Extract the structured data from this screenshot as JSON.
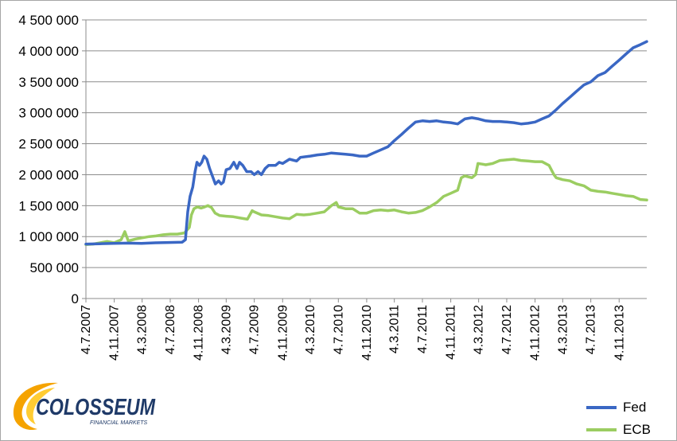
{
  "brand": {
    "name": "COLOSSEUM",
    "tagline": "FINANCIAL MARKETS",
    "colors": {
      "orange": "#f5a300",
      "navy": "#1f3a68"
    }
  },
  "chart_data": {
    "type": "line",
    "title": "",
    "xlabel": "",
    "ylabel": "",
    "ylim": [
      0,
      4500000
    ],
    "y_ticks": [
      0,
      500000,
      1000000,
      1500000,
      2000000,
      2500000,
      3000000,
      3500000,
      4000000,
      4500000
    ],
    "y_tick_labels": [
      "0",
      "500 000",
      "1 000 000",
      "1 500 000",
      "2 000 000",
      "2 500 000",
      "3 000 000",
      "3 500 000",
      "4 000 000",
      "4 500 000"
    ],
    "xlim": [
      "2007-07-04",
      "2014-03-04"
    ],
    "x_tick_labels": [
      "4.7.2007",
      "4.11.2007",
      "4.3.2008",
      "4.7.2008",
      "4.11.2008",
      "4.3.2009",
      "4.7.2009",
      "4.11.2009",
      "4.3.2010",
      "4.7.2010",
      "4.11.2010",
      "4.3.2011",
      "4.7.2011",
      "4.11.2011",
      "4.3.2012",
      "4.7.2012",
      "4.11.2012",
      "4.3.2013",
      "4.7.2013",
      "4.11.2013"
    ],
    "x_tick_dates": [
      "2007-07-04",
      "2007-11-04",
      "2008-03-04",
      "2008-07-04",
      "2008-11-04",
      "2009-03-04",
      "2009-07-04",
      "2009-11-04",
      "2010-03-04",
      "2010-07-04",
      "2010-11-04",
      "2011-03-04",
      "2011-07-04",
      "2011-11-04",
      "2012-03-04",
      "2012-07-04",
      "2012-11-04",
      "2013-03-04",
      "2013-07-04",
      "2013-11-04"
    ],
    "grid": {
      "horizontal": true,
      "vertical": false
    },
    "legend": "bottom-right",
    "series": [
      {
        "name": "Fed",
        "color": "#3a67c4",
        "points": [
          [
            "2007-07-04",
            880000
          ],
          [
            "2007-09-01",
            885000
          ],
          [
            "2007-11-01",
            890000
          ],
          [
            "2008-01-01",
            895000
          ],
          [
            "2008-03-01",
            890000
          ],
          [
            "2008-05-01",
            900000
          ],
          [
            "2008-07-01",
            905000
          ],
          [
            "2008-08-25",
            910000
          ],
          [
            "2008-09-08",
            950000
          ],
          [
            "2008-09-18",
            1400000
          ],
          [
            "2008-09-28",
            1650000
          ],
          [
            "2008-10-10",
            1800000
          ],
          [
            "2008-10-20",
            2050000
          ],
          [
            "2008-10-28",
            2200000
          ],
          [
            "2008-11-08",
            2150000
          ],
          [
            "2008-11-18",
            2200000
          ],
          [
            "2008-11-28",
            2300000
          ],
          [
            "2008-12-10",
            2250000
          ],
          [
            "2008-12-22",
            2100000
          ],
          [
            "2009-01-06",
            1950000
          ],
          [
            "2009-01-16",
            1850000
          ],
          [
            "2009-01-30",
            1900000
          ],
          [
            "2009-02-10",
            1850000
          ],
          [
            "2009-02-20",
            1880000
          ],
          [
            "2009-03-04",
            2080000
          ],
          [
            "2009-03-20",
            2100000
          ],
          [
            "2009-04-06",
            2200000
          ],
          [
            "2009-04-20",
            2100000
          ],
          [
            "2009-05-01",
            2200000
          ],
          [
            "2009-05-15",
            2150000
          ],
          [
            "2009-06-01",
            2050000
          ],
          [
            "2009-06-20",
            2050000
          ],
          [
            "2009-07-04",
            2000000
          ],
          [
            "2009-07-20",
            2050000
          ],
          [
            "2009-08-04",
            2000000
          ],
          [
            "2009-08-20",
            2100000
          ],
          [
            "2009-09-04",
            2150000
          ],
          [
            "2009-10-04",
            2150000
          ],
          [
            "2009-10-20",
            2200000
          ],
          [
            "2009-11-04",
            2180000
          ],
          [
            "2009-12-04",
            2250000
          ],
          [
            "2010-01-04",
            2220000
          ],
          [
            "2010-01-20",
            2280000
          ],
          [
            "2010-03-04",
            2300000
          ],
          [
            "2010-04-04",
            2320000
          ],
          [
            "2010-05-04",
            2330000
          ],
          [
            "2010-06-04",
            2350000
          ],
          [
            "2010-07-04",
            2340000
          ],
          [
            "2010-08-04",
            2330000
          ],
          [
            "2010-09-04",
            2320000
          ],
          [
            "2010-10-04",
            2300000
          ],
          [
            "2010-11-04",
            2300000
          ],
          [
            "2010-12-04",
            2350000
          ],
          [
            "2011-01-04",
            2400000
          ],
          [
            "2011-02-04",
            2450000
          ],
          [
            "2011-03-04",
            2550000
          ],
          [
            "2011-04-04",
            2650000
          ],
          [
            "2011-05-04",
            2750000
          ],
          [
            "2011-06-04",
            2850000
          ],
          [
            "2011-07-04",
            2870000
          ],
          [
            "2011-08-04",
            2860000
          ],
          [
            "2011-09-04",
            2870000
          ],
          [
            "2011-10-04",
            2850000
          ],
          [
            "2011-11-04",
            2840000
          ],
          [
            "2011-12-04",
            2820000
          ],
          [
            "2012-01-04",
            2900000
          ],
          [
            "2012-02-04",
            2920000
          ],
          [
            "2012-03-04",
            2900000
          ],
          [
            "2012-04-04",
            2870000
          ],
          [
            "2012-05-04",
            2860000
          ],
          [
            "2012-06-04",
            2860000
          ],
          [
            "2012-07-04",
            2850000
          ],
          [
            "2012-08-04",
            2840000
          ],
          [
            "2012-09-04",
            2820000
          ],
          [
            "2012-10-04",
            2830000
          ],
          [
            "2012-11-04",
            2850000
          ],
          [
            "2012-12-04",
            2900000
          ],
          [
            "2013-01-04",
            2950000
          ],
          [
            "2013-02-04",
            3050000
          ],
          [
            "2013-03-04",
            3150000
          ],
          [
            "2013-04-04",
            3250000
          ],
          [
            "2013-05-04",
            3350000
          ],
          [
            "2013-06-04",
            3450000
          ],
          [
            "2013-07-04",
            3500000
          ],
          [
            "2013-08-04",
            3600000
          ],
          [
            "2013-09-04",
            3650000
          ],
          [
            "2013-10-04",
            3750000
          ],
          [
            "2013-11-04",
            3850000
          ],
          [
            "2013-12-04",
            3950000
          ],
          [
            "2014-01-04",
            4050000
          ],
          [
            "2014-02-04",
            4100000
          ],
          [
            "2014-03-04",
            4150000
          ]
        ]
      },
      {
        "name": "ECB",
        "color": "#9bcd61",
        "points": [
          [
            "2007-07-04",
            870000
          ],
          [
            "2007-08-04",
            880000
          ],
          [
            "2007-09-04",
            900000
          ],
          [
            "2007-10-04",
            920000
          ],
          [
            "2007-11-04",
            900000
          ],
          [
            "2007-12-04",
            950000
          ],
          [
            "2007-12-20",
            1080000
          ],
          [
            "2008-01-04",
            930000
          ],
          [
            "2008-02-04",
            960000
          ],
          [
            "2008-03-04",
            980000
          ],
          [
            "2008-04-04",
            1000000
          ],
          [
            "2008-05-04",
            1010000
          ],
          [
            "2008-06-04",
            1030000
          ],
          [
            "2008-07-04",
            1040000
          ],
          [
            "2008-08-04",
            1040000
          ],
          [
            "2008-09-04",
            1060000
          ],
          [
            "2008-09-25",
            1150000
          ],
          [
            "2008-10-04",
            1350000
          ],
          [
            "2008-10-15",
            1450000
          ],
          [
            "2008-10-30",
            1480000
          ],
          [
            "2008-11-15",
            1460000
          ],
          [
            "2008-12-01",
            1480000
          ],
          [
            "2008-12-15",
            1500000
          ],
          [
            "2008-12-30",
            1470000
          ],
          [
            "2009-01-15",
            1380000
          ],
          [
            "2009-02-04",
            1340000
          ],
          [
            "2009-03-04",
            1330000
          ],
          [
            "2009-04-04",
            1320000
          ],
          [
            "2009-05-04",
            1300000
          ],
          [
            "2009-06-04",
            1280000
          ],
          [
            "2009-06-25",
            1420000
          ],
          [
            "2009-07-04",
            1400000
          ],
          [
            "2009-08-04",
            1350000
          ],
          [
            "2009-09-04",
            1340000
          ],
          [
            "2009-10-04",
            1320000
          ],
          [
            "2009-11-04",
            1300000
          ],
          [
            "2009-12-04",
            1290000
          ],
          [
            "2010-01-04",
            1360000
          ],
          [
            "2010-02-04",
            1350000
          ],
          [
            "2010-03-04",
            1360000
          ],
          [
            "2010-04-04",
            1380000
          ],
          [
            "2010-05-04",
            1400000
          ],
          [
            "2010-06-04",
            1500000
          ],
          [
            "2010-06-25",
            1550000
          ],
          [
            "2010-07-04",
            1480000
          ],
          [
            "2010-08-04",
            1450000
          ],
          [
            "2010-09-04",
            1450000
          ],
          [
            "2010-10-04",
            1380000
          ],
          [
            "2010-11-04",
            1380000
          ],
          [
            "2010-12-04",
            1420000
          ],
          [
            "2011-01-04",
            1430000
          ],
          [
            "2011-02-04",
            1420000
          ],
          [
            "2011-03-04",
            1430000
          ],
          [
            "2011-04-04",
            1400000
          ],
          [
            "2011-05-04",
            1380000
          ],
          [
            "2011-06-04",
            1390000
          ],
          [
            "2011-07-04",
            1420000
          ],
          [
            "2011-08-04",
            1480000
          ],
          [
            "2011-09-04",
            1550000
          ],
          [
            "2011-10-04",
            1650000
          ],
          [
            "2011-11-04",
            1700000
          ],
          [
            "2011-12-04",
            1750000
          ],
          [
            "2011-12-20",
            1950000
          ],
          [
            "2012-01-04",
            1980000
          ],
          [
            "2012-02-04",
            1950000
          ],
          [
            "2012-02-20",
            2000000
          ],
          [
            "2012-03-01",
            2180000
          ],
          [
            "2012-03-20",
            2170000
          ],
          [
            "2012-04-04",
            2160000
          ],
          [
            "2012-05-04",
            2180000
          ],
          [
            "2012-06-04",
            2230000
          ],
          [
            "2012-07-04",
            2240000
          ],
          [
            "2012-08-04",
            2250000
          ],
          [
            "2012-09-04",
            2230000
          ],
          [
            "2012-10-04",
            2220000
          ],
          [
            "2012-11-04",
            2210000
          ],
          [
            "2012-12-04",
            2210000
          ],
          [
            "2013-01-04",
            2150000
          ],
          [
            "2013-01-25",
            2000000
          ],
          [
            "2013-02-04",
            1950000
          ],
          [
            "2013-03-04",
            1920000
          ],
          [
            "2013-04-04",
            1900000
          ],
          [
            "2013-05-04",
            1850000
          ],
          [
            "2013-06-04",
            1820000
          ],
          [
            "2013-07-04",
            1750000
          ],
          [
            "2013-08-04",
            1730000
          ],
          [
            "2013-09-04",
            1720000
          ],
          [
            "2013-10-04",
            1700000
          ],
          [
            "2013-11-04",
            1680000
          ],
          [
            "2013-12-04",
            1660000
          ],
          [
            "2014-01-04",
            1650000
          ],
          [
            "2014-02-04",
            1600000
          ],
          [
            "2014-03-04",
            1590000
          ]
        ]
      }
    ]
  }
}
